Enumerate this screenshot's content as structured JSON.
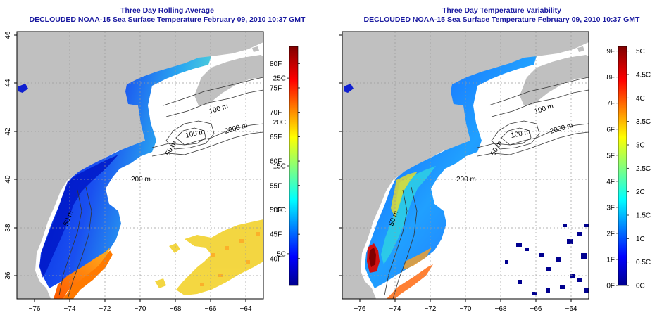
{
  "panels": [
    {
      "title": "Three Day Rolling Average",
      "subtitle": "DECLOUDED NOAA-15 Sea Surface Temperature February 09, 2010 10:37 GMT",
      "colorbar": {
        "right_labels": [
          "80F",
          "75F",
          "70F",
          "65F",
          "60F",
          "55F",
          "50F",
          "45F",
          "40F"
        ],
        "right_values": [
          80,
          75,
          70,
          65,
          60,
          55,
          50,
          45,
          40
        ],
        "right_range": [
          34.5,
          83.5
        ],
        "left_labels": [
          "25C",
          "20C",
          "15C",
          "10C",
          "5C"
        ],
        "left_values": [
          25,
          20,
          15,
          10,
          5
        ]
      }
    },
    {
      "title": "Three Day Temperature Variability",
      "subtitle": "DECLOUDED NOAA-15 Sea Surface Temperature February 09, 2010 10:37 GMT",
      "colorbar": {
        "left_labels": [
          "9F",
          "8F",
          "7F",
          "6F",
          "5F",
          "4F",
          "3F",
          "2F",
          "1F",
          "0F"
        ],
        "left_values": [
          9,
          8,
          7,
          6,
          5,
          4,
          3,
          2,
          1,
          0
        ],
        "right_labels": [
          "5C",
          "4.5C",
          "4C",
          "3.5C",
          "3C",
          "2.5C",
          "2C",
          "1.5C",
          "1C",
          "0.5C",
          "0C"
        ],
        "right_values": [
          5,
          4.5,
          4,
          3.5,
          3,
          2.5,
          2,
          1.5,
          1,
          0.5,
          0
        ],
        "right_range": [
          0,
          5.1
        ]
      }
    }
  ],
  "map": {
    "lon_ticks": [
      "−76",
      "−74",
      "−72",
      "−70",
      "−68",
      "−66",
      "−64"
    ],
    "lon_values": [
      -76,
      -74,
      -72,
      -70,
      -68,
      -66,
      -64
    ],
    "lat_ticks": [
      "36",
      "38",
      "40",
      "42",
      "44",
      "46"
    ],
    "lat_values": [
      36,
      38,
      40,
      42,
      44,
      46
    ],
    "contour_labels": [
      "100 m",
      "100 m",
      "2000 m",
      "200 m",
      "50 m",
      "50 m"
    ],
    "land_color": "#c0c0c0"
  },
  "chart_data": [
    {
      "type": "heatmap",
      "title": "Three Day Rolling Average",
      "subtitle": "DECLOUDED NOAA-15 Sea Surface Temperature February 09, 2010 10:37 GMT",
      "x_ticks": [
        -76,
        -74,
        -72,
        -70,
        -68,
        -66,
        -64
      ],
      "y_ticks": [
        36,
        38,
        40,
        42,
        44,
        46
      ],
      "colorbar_F": [
        40,
        45,
        50,
        55,
        60,
        65,
        70,
        75,
        80
      ],
      "colorbar_C": [
        5,
        10,
        15,
        20,
        25
      ]
    },
    {
      "type": "heatmap",
      "title": "Three Day Temperature Variability",
      "subtitle": "DECLOUDED NOAA-15 Sea Surface Temperature February 09, 2010 10:37 GMT",
      "x_ticks": [
        -76,
        -74,
        -72,
        -70,
        -68,
        -66,
        -64
      ],
      "y_ticks": [
        36,
        38,
        40,
        42,
        44,
        46
      ],
      "colorbar_F": [
        0,
        1,
        2,
        3,
        4,
        5,
        6,
        7,
        8,
        9
      ],
      "colorbar_C": [
        0,
        0.5,
        1,
        1.5,
        2,
        2.5,
        3,
        3.5,
        4,
        4.5,
        5
      ]
    }
  ]
}
